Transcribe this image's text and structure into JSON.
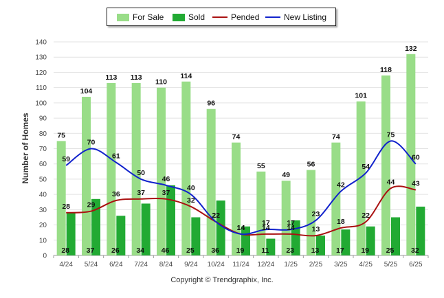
{
  "chart_data": {
    "type": "bar",
    "categories": [
      "4/24",
      "5/24",
      "6/24",
      "7/24",
      "8/24",
      "9/24",
      "10/24",
      "11/24",
      "12/24",
      "1/25",
      "2/25",
      "3/25",
      "4/25",
      "5/25",
      "6/25"
    ],
    "ylabel": "Number of Homes",
    "ylim": [
      0,
      140
    ],
    "yticks": [
      0,
      10,
      20,
      30,
      40,
      50,
      60,
      70,
      80,
      90,
      100,
      110,
      120,
      130,
      140
    ],
    "grid": true,
    "legend_position": "top",
    "series": [
      {
        "name": "For Sale",
        "kind": "bar",
        "color": "#99dd88",
        "values": [
          75,
          104,
          113,
          113,
          110,
          114,
          96,
          74,
          55,
          49,
          56,
          74,
          101,
          118,
          132
        ]
      },
      {
        "name": "Sold",
        "kind": "bar",
        "color": "#22aa33",
        "values": [
          28,
          37,
          26,
          34,
          46,
          25,
          36,
          19,
          11,
          23,
          13,
          17,
          19,
          25,
          32
        ]
      },
      {
        "name": "Pended",
        "kind": "line",
        "color": "#aa1111",
        "values": [
          28,
          29,
          36,
          37,
          37,
          32,
          22,
          14,
          14,
          14,
          13,
          18,
          22,
          44,
          43
        ]
      },
      {
        "name": "New Listing",
        "kind": "line",
        "color": "#1122cc",
        "values": [
          59,
          70,
          61,
          50,
          46,
          40,
          22,
          14,
          17,
          17,
          23,
          42,
          54,
          75,
          60
        ]
      }
    ]
  },
  "legend": [
    {
      "label": "For Sale",
      "kind": "bar",
      "color": "#99dd88"
    },
    {
      "label": "Sold",
      "kind": "bar",
      "color": "#22aa33"
    },
    {
      "label": "Pended",
      "kind": "line",
      "color": "#aa1111"
    },
    {
      "label": "New Listing",
      "kind": "line",
      "color": "#1122cc"
    }
  ],
  "copyright": "Copyright © Trendgraphix, Inc."
}
